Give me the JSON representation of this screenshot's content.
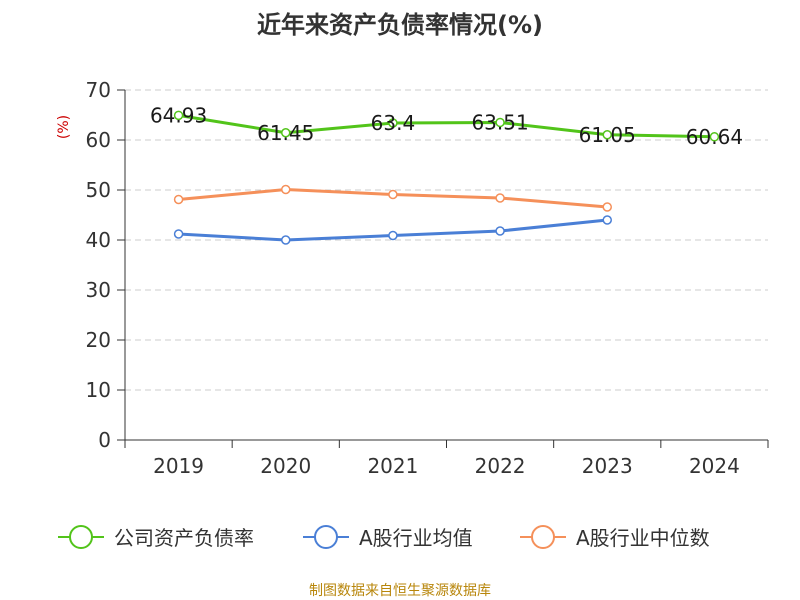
{
  "chart_data": {
    "type": "line",
    "title": "近年来资产负债率情况(%)",
    "ylabel": "(%)",
    "categories": [
      "2019",
      "2020",
      "2021",
      "2022",
      "2023",
      "2024"
    ],
    "ylim": [
      0,
      70
    ],
    "yticks": [
      0,
      10,
      20,
      30,
      40,
      50,
      60,
      70
    ],
    "grid": true,
    "legend_position": "bottom",
    "series": [
      {
        "name": "公司资产负债率",
        "color": "#52c41a",
        "values": [
          64.93,
          61.45,
          63.4,
          63.51,
          61.05,
          60.64
        ],
        "labels": [
          "64.93",
          "61.45",
          "63.4",
          "63.51",
          "61.05",
          "60.64"
        ]
      },
      {
        "name": "A股行业均值",
        "color": "#4a7fd6",
        "values": [
          41.2,
          40.0,
          40.9,
          41.8,
          44.0,
          null
        ]
      },
      {
        "name": "A股行业中位数",
        "color": "#f5905a",
        "values": [
          48.1,
          50.1,
          49.1,
          48.4,
          46.6,
          null
        ]
      }
    ],
    "source": "制图数据来自恒生聚源数据库"
  }
}
